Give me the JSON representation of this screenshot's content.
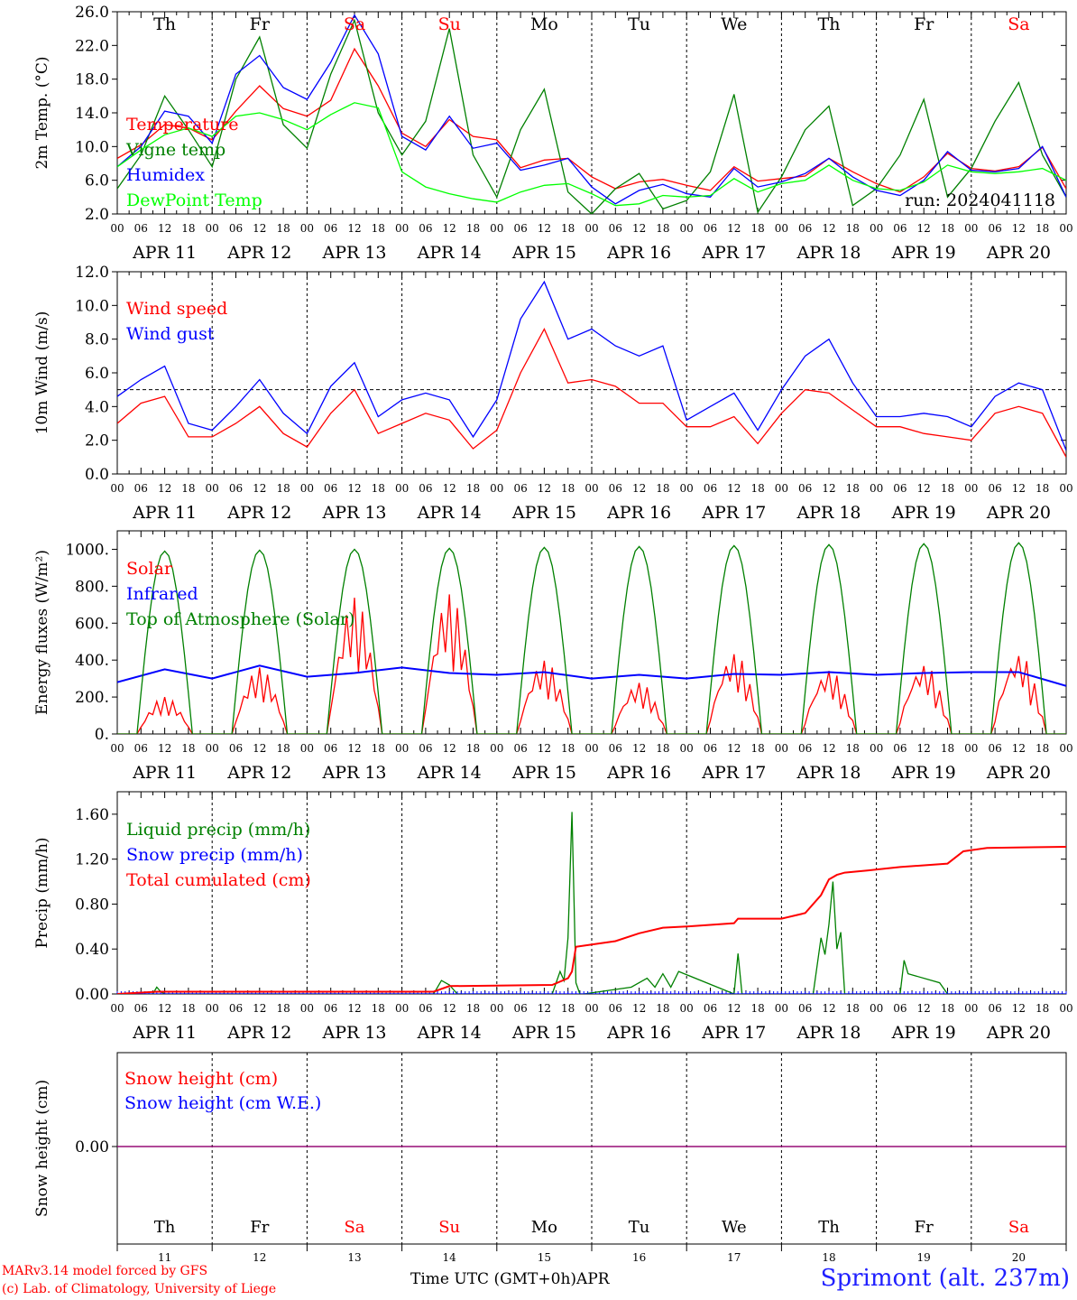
{
  "run_label": "run: 2024041118",
  "footer": {
    "model": "MARv3.14 model forced by GFS",
    "credit": "(c) Lab. of Climatology, University of Liege",
    "xaxis": "Time UTC (GMT+0h)",
    "month": "APR",
    "station": "Sprimont (alt. 237m)"
  },
  "days": [
    {
      "abbr": "Th",
      "date": "APR 11",
      "num": "11",
      "weekend": false
    },
    {
      "abbr": "Fr",
      "date": "APR 12",
      "num": "12",
      "weekend": false
    },
    {
      "abbr": "Sa",
      "date": "APR 13",
      "num": "13",
      "weekend": true
    },
    {
      "abbr": "Su",
      "date": "APR 14",
      "num": "14",
      "weekend": true
    },
    {
      "abbr": "Mo",
      "date": "APR 15",
      "num": "15",
      "weekend": false
    },
    {
      "abbr": "Tu",
      "date": "APR 16",
      "num": "16",
      "weekend": false
    },
    {
      "abbr": "We",
      "date": "APR 17",
      "num": "17",
      "weekend": false
    },
    {
      "abbr": "Th",
      "date": "APR 18",
      "num": "18",
      "weekend": false
    },
    {
      "abbr": "Fr",
      "date": "APR 19",
      "num": "19",
      "weekend": false
    },
    {
      "abbr": "Sa",
      "date": "APR 20",
      "num": "20",
      "weekend": true
    }
  ],
  "hour_ticks": [
    "00",
    "06",
    "12",
    "18"
  ],
  "colors": {
    "red": "#ff0000",
    "green": "#008000",
    "blue": "#0000ff",
    "lightgreen": "#00ff00",
    "purple": "#800080",
    "weekend": "#ff0000"
  },
  "chart_data": [
    {
      "type": "line",
      "ylabel": "2m Temp. (°C)",
      "ylim": [
        2,
        26
      ],
      "yticks": [
        "2.0",
        "6.0",
        "10.0",
        "14.0",
        "18.0",
        "22.0",
        "26.0"
      ],
      "x_unit": "hours since APR 11 00 UTC",
      "show_day_names": true,
      "series": [
        {
          "name": "Temperature",
          "color": "#ff0000",
          "x": [
            0,
            6,
            12,
            18,
            24,
            30,
            36,
            42,
            48,
            54,
            60,
            66,
            72,
            78,
            84,
            90,
            96,
            102,
            108,
            114,
            120,
            126,
            132,
            138,
            144,
            150,
            156,
            162,
            168,
            174,
            180,
            186,
            192,
            198,
            204,
            210,
            216,
            222,
            228,
            234,
            240
          ],
          "values": [
            8.6,
            10.2,
            12.6,
            12.2,
            10.8,
            14.2,
            17.2,
            14.5,
            13.6,
            15.5,
            21.6,
            17.2,
            11.6,
            10.0,
            13.2,
            11.2,
            10.8,
            7.5,
            8.4,
            8.6,
            6.4,
            5.0,
            5.8,
            6.1,
            5.4,
            4.8,
            7.6,
            5.9,
            6.2,
            6.5,
            8.6,
            7.0,
            5.6,
            4.6,
            6.4,
            9.2,
            7.4,
            7.1,
            7.6,
            9.9,
            5.0
          ]
        },
        {
          "name": "Vigne temp",
          "color": "#008000",
          "x": [
            0,
            6,
            12,
            18,
            24,
            30,
            36,
            42,
            48,
            54,
            60,
            66,
            72,
            78,
            84,
            90,
            96,
            102,
            108,
            114,
            120,
            126,
            132,
            138,
            144,
            150,
            156,
            162,
            168,
            174,
            180,
            186,
            192,
            198,
            204,
            210,
            216,
            222,
            228,
            234,
            240
          ],
          "values": [
            5.0,
            9.0,
            16.0,
            12.0,
            7.6,
            18.0,
            23.0,
            12.6,
            9.8,
            18.6,
            25.0,
            14.0,
            9.0,
            13.0,
            24.0,
            9.0,
            4.0,
            12.0,
            16.8,
            4.6,
            2.0,
            5.0,
            6.8,
            2.6,
            3.6,
            7.0,
            16.2,
            2.2,
            6.4,
            12.0,
            14.8,
            3.0,
            5.0,
            9.0,
            15.6,
            4.0,
            7.4,
            13.0,
            17.6,
            9.0,
            4.0
          ]
        },
        {
          "name": "Humidex",
          "color": "#0000ff",
          "x": [
            0,
            6,
            12,
            18,
            24,
            30,
            36,
            42,
            48,
            54,
            60,
            66,
            72,
            78,
            84,
            90,
            96,
            102,
            108,
            114,
            120,
            126,
            132,
            138,
            144,
            150,
            156,
            162,
            168,
            174,
            180,
            186,
            192,
            198,
            204,
            210,
            216,
            222,
            228,
            234,
            240
          ],
          "values": [
            7.6,
            10.0,
            14.2,
            13.6,
            10.4,
            18.6,
            20.8,
            17.0,
            15.6,
            20.0,
            25.6,
            21.0,
            11.2,
            9.6,
            13.6,
            9.8,
            10.4,
            7.2,
            7.8,
            8.6,
            5.2,
            3.2,
            4.8,
            5.5,
            4.4,
            4.0,
            7.4,
            5.2,
            5.8,
            6.8,
            8.6,
            6.4,
            4.8,
            4.2,
            6.0,
            9.4,
            7.2,
            7.0,
            7.4,
            10.0,
            4.0
          ]
        },
        {
          "name": "DewPoint Temp",
          "color": "#00ff00",
          "x": [
            0,
            6,
            12,
            18,
            24,
            30,
            36,
            42,
            48,
            54,
            60,
            66,
            72,
            78,
            84,
            90,
            96,
            102,
            108,
            114,
            120,
            126,
            132,
            138,
            144,
            150,
            156,
            162,
            168,
            174,
            180,
            186,
            192,
            198,
            204,
            210,
            216,
            222,
            228,
            234,
            240
          ],
          "values": [
            7.6,
            9.6,
            11.4,
            12.2,
            11.2,
            13.6,
            14.0,
            13.2,
            12.0,
            13.8,
            15.2,
            14.6,
            7.0,
            5.2,
            4.4,
            3.8,
            3.4,
            4.6,
            5.4,
            5.6,
            4.4,
            3.0,
            3.2,
            4.2,
            4.0,
            4.2,
            6.2,
            4.6,
            5.6,
            6.0,
            7.8,
            6.0,
            5.0,
            4.8,
            5.8,
            7.8,
            7.0,
            6.8,
            7.0,
            7.4,
            6.0
          ]
        }
      ]
    },
    {
      "type": "line",
      "ylabel": "10m Wind (m/s)",
      "ylim": [
        0,
        12
      ],
      "yticks": [
        "0.0",
        "2.0",
        "4.0",
        "6.0",
        "8.0",
        "10.0",
        "12.0"
      ],
      "reference_line": 5.0,
      "x_unit": "hours since APR 11 00 UTC",
      "series": [
        {
          "name": "Wind speed",
          "color": "#ff0000",
          "x": [
            0,
            6,
            12,
            18,
            24,
            30,
            36,
            42,
            48,
            54,
            60,
            66,
            72,
            78,
            84,
            90,
            96,
            102,
            108,
            114,
            120,
            126,
            132,
            138,
            144,
            150,
            156,
            162,
            168,
            174,
            180,
            186,
            192,
            198,
            204,
            210,
            216,
            222,
            228,
            234,
            240
          ],
          "values": [
            3.0,
            4.2,
            4.6,
            2.2,
            2.2,
            3.0,
            4.0,
            2.4,
            1.6,
            3.6,
            5.0,
            2.4,
            3.0,
            3.6,
            3.2,
            1.5,
            2.6,
            6.0,
            8.6,
            5.4,
            5.6,
            5.2,
            4.2,
            4.2,
            2.8,
            2.8,
            3.4,
            1.8,
            3.6,
            5.0,
            4.8,
            3.8,
            2.8,
            2.8,
            2.4,
            2.2,
            2.0,
            3.6,
            4.0,
            3.6,
            1.0
          ]
        },
        {
          "name": "Wind gust",
          "color": "#0000ff",
          "x": [
            0,
            6,
            12,
            18,
            24,
            30,
            36,
            42,
            48,
            54,
            60,
            66,
            72,
            78,
            84,
            90,
            96,
            102,
            108,
            114,
            120,
            126,
            132,
            138,
            144,
            150,
            156,
            162,
            168,
            174,
            180,
            186,
            192,
            198,
            204,
            210,
            216,
            222,
            228,
            234,
            240
          ],
          "values": [
            4.6,
            5.6,
            6.4,
            3.0,
            2.6,
            4.0,
            5.6,
            3.6,
            2.4,
            5.2,
            6.6,
            3.4,
            4.4,
            4.8,
            4.4,
            2.2,
            4.4,
            9.2,
            11.4,
            8.0,
            8.6,
            7.6,
            7.0,
            7.6,
            3.2,
            4.0,
            4.8,
            2.6,
            5.0,
            7.0,
            8.0,
            5.4,
            3.4,
            3.4,
            3.6,
            3.4,
            2.8,
            4.6,
            5.4,
            5.0,
            1.4
          ]
        }
      ]
    },
    {
      "type": "line",
      "ylabel": "Energy fluxes (W/m²)",
      "ylim": [
        0,
        1100
      ],
      "yticks": [
        "0.",
        "200.",
        "400.",
        "600.",
        "800.",
        "1000."
      ],
      "x_unit": "hours since APR 11 00 UTC",
      "series": [
        {
          "name": "Solar",
          "color": "#ff0000",
          "daily_peaks": [
            200,
            360,
            740,
            760,
            400,
            280,
            440,
            350,
            380,
            440
          ]
        },
        {
          "name": "Infrared",
          "color": "#0000ff",
          "x": [
            0,
            12,
            24,
            36,
            48,
            60,
            72,
            84,
            96,
            108,
            120,
            132,
            144,
            156,
            168,
            180,
            192,
            204,
            216,
            228,
            240
          ],
          "values": [
            280,
            350,
            300,
            370,
            310,
            330,
            360,
            330,
            320,
            335,
            300,
            320,
            300,
            325,
            320,
            335,
            320,
            330,
            335,
            335,
            260
          ]
        },
        {
          "name": "Top of Atmosphere (Solar)",
          "color": "#008000",
          "daily_peaks": [
            990,
            995,
            1000,
            1005,
            1010,
            1015,
            1020,
            1025,
            1030,
            1035
          ]
        }
      ]
    },
    {
      "type": "line",
      "ylabel": "Precip (mm/h)",
      "ylim": [
        0,
        1.8
      ],
      "yticks": [
        "0.00",
        "0.40",
        "0.80",
        "1.20",
        "1.60"
      ],
      "x_unit": "hours since APR 11 00 UTC",
      "series": [
        {
          "name": "Liquid precip (mm/h)",
          "color": "#008000",
          "x": [
            0,
            9,
            10,
            11,
            12,
            80,
            82,
            84,
            86,
            110,
            112,
            113,
            114,
            115,
            116,
            117,
            118,
            130,
            134,
            136,
            138,
            140,
            142,
            156,
            157,
            158,
            176,
            178,
            179,
            180,
            181,
            182,
            183,
            184,
            198,
            199,
            200,
            208,
            210,
            240
          ],
          "values": [
            0,
            0,
            0.06,
            0.02,
            0,
            0,
            0.12,
            0.08,
            0,
            0,
            0.2,
            0.12,
            0.5,
            1.62,
            0.1,
            0,
            0,
            0.06,
            0.14,
            0.06,
            0.18,
            0.06,
            0.2,
            0,
            0.36,
            0,
            0,
            0.5,
            0.35,
            0.62,
            1.0,
            0.4,
            0.55,
            0,
            0,
            0.3,
            0.18,
            0.1,
            0,
            0
          ]
        },
        {
          "name": "Snow precip (mm/h)",
          "color": "#0000ff",
          "x": [
            0,
            240
          ],
          "values": [
            0,
            0
          ]
        },
        {
          "name": "Total cumulated (cm)",
          "color": "#ff0000",
          "x": [
            0,
            10,
            80,
            84,
            110,
            114,
            115,
            116,
            120,
            126,
            132,
            138,
            144,
            156,
            157,
            168,
            174,
            178,
            180,
            182,
            184,
            190,
            198,
            210,
            214,
            220,
            240
          ],
          "values": [
            0,
            0.02,
            0.02,
            0.07,
            0.08,
            0.14,
            0.2,
            0.42,
            0.44,
            0.47,
            0.54,
            0.59,
            0.6,
            0.63,
            0.67,
            0.67,
            0.72,
            0.88,
            1.02,
            1.06,
            1.08,
            1.1,
            1.13,
            1.16,
            1.27,
            1.3,
            1.31
          ]
        }
      ]
    },
    {
      "type": "line",
      "ylabel": "Snow height (cm)",
      "yticks": [
        "0.00"
      ],
      "x_unit": "hours since APR 11 00 UTC",
      "series": [
        {
          "name": "Snow height (cm)",
          "color": "#ff0000",
          "x": [
            0,
            240
          ],
          "values": [
            0,
            0
          ]
        },
        {
          "name": "Snow height (cm W.E.)",
          "color": "#0000ff",
          "x": [
            0,
            240
          ],
          "values": [
            0,
            0
          ]
        }
      ]
    }
  ]
}
